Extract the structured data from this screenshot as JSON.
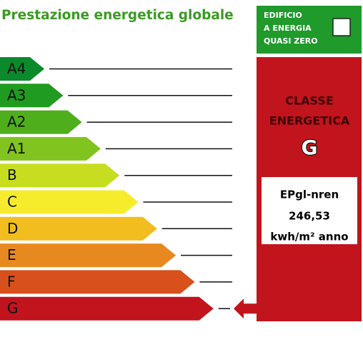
{
  "title": "Prestazione energetica globale",
  "nzeb": {
    "lines": [
      "EDIFICIO",
      "A ENERGIA",
      "QUASI ZERO"
    ]
  },
  "classes": [
    {
      "label": "A4",
      "color": "#0b8a2c"
    },
    {
      "label": "A3",
      "color": "#1f9b1f"
    },
    {
      "label": "A2",
      "color": "#4fae1b"
    },
    {
      "label": "A1",
      "color": "#82c41f"
    },
    {
      "label": "B",
      "color": "#c6de1f"
    },
    {
      "label": "C",
      "color": "#f6ec2c"
    },
    {
      "label": "D",
      "color": "#f1bd1f"
    },
    {
      "label": "E",
      "color": "#e8891f"
    },
    {
      "label": "F",
      "color": "#d8501b"
    },
    {
      "label": "G",
      "color": "#c1141c"
    }
  ],
  "panel": {
    "heading": [
      "CLASSE",
      "ENERGETICA"
    ],
    "rating": "G",
    "index_name": "EPgl-nren",
    "index_value": "246,53",
    "unit": "kwh/m² anno"
  }
}
